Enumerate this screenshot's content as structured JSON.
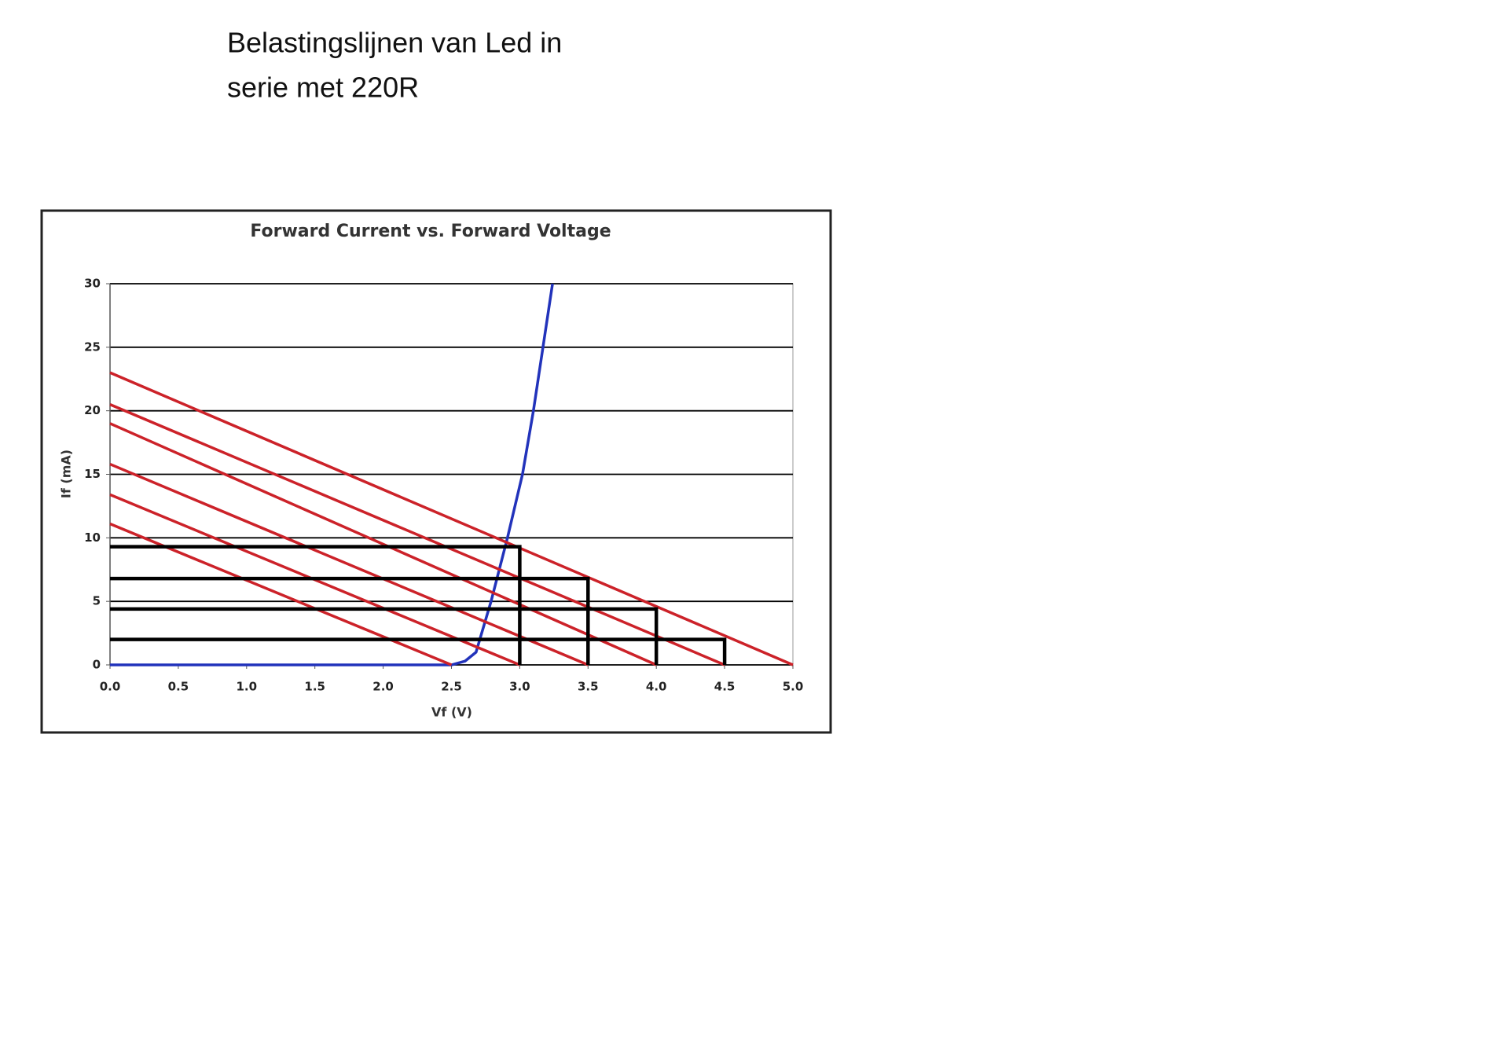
{
  "heading": [
    "Belastingslijnen van Led in",
    "serie met 220R"
  ],
  "chart_data": {
    "type": "line",
    "title": "Forward Current vs. Forward Voltage",
    "xlabel": "Vf (V)",
    "ylabel": "If (mA)",
    "xlim": [
      0,
      5
    ],
    "ylim": [
      0,
      30
    ],
    "xticks": [
      {
        "value": 0,
        "label": "0.0"
      },
      {
        "value": 0.5,
        "label": "0.5"
      },
      {
        "value": 1,
        "label": "1.0"
      },
      {
        "value": 1.5,
        "label": "1.5"
      },
      {
        "value": 2,
        "label": "2.0"
      },
      {
        "value": 2.5,
        "label": "2.5"
      },
      {
        "value": 3,
        "label": "3.0"
      },
      {
        "value": 3.5,
        "label": "3.5"
      },
      {
        "value": 4,
        "label": "4.0"
      },
      {
        "value": 4.5,
        "label": "4.5"
      },
      {
        "value": 5,
        "label": "5.0"
      }
    ],
    "yticks": [
      0,
      5,
      10,
      15,
      20,
      25,
      30
    ],
    "grid": true,
    "series": [
      {
        "color": "#2233bb",
        "x": [
          0,
          2.5,
          2.6,
          2.68,
          2.79,
          2.91,
          3.02,
          3.1,
          3.17,
          3.24
        ],
        "values": [
          0,
          0,
          0.3,
          1,
          5,
          10,
          15,
          20,
          25,
          30
        ]
      },
      {
        "color": "#cc2229",
        "x": [
          0,
          5
        ],
        "values": [
          23,
          0
        ]
      },
      {
        "color": "#cc2229",
        "x": [
          0,
          4.5
        ],
        "values": [
          20.5,
          0
        ]
      },
      {
        "color": "#cc2229",
        "x": [
          0,
          4
        ],
        "values": [
          19,
          0
        ]
      },
      {
        "color": "#cc2229",
        "x": [
          0,
          3.5
        ],
        "values": [
          15.8,
          0
        ]
      },
      {
        "color": "#cc2229",
        "x": [
          0,
          3
        ],
        "values": [
          13.4,
          0
        ]
      },
      {
        "color": "#cc2229",
        "x": [
          0,
          2.5
        ],
        "values": [
          11.1,
          0
        ]
      },
      {
        "color": "#000000",
        "x": [
          0,
          3,
          3
        ],
        "values": [
          9.3,
          9.3,
          0
        ]
      },
      {
        "color": "#000000",
        "x": [
          0,
          3.5,
          3.5
        ],
        "values": [
          6.8,
          6.8,
          0
        ]
      },
      {
        "color": "#000000",
        "x": [
          0,
          4,
          4
        ],
        "values": [
          4.4,
          4.4,
          0
        ]
      },
      {
        "color": "#000000",
        "x": [
          0,
          4.5,
          4.5
        ],
        "values": [
          2,
          2,
          0
        ]
      }
    ]
  }
}
